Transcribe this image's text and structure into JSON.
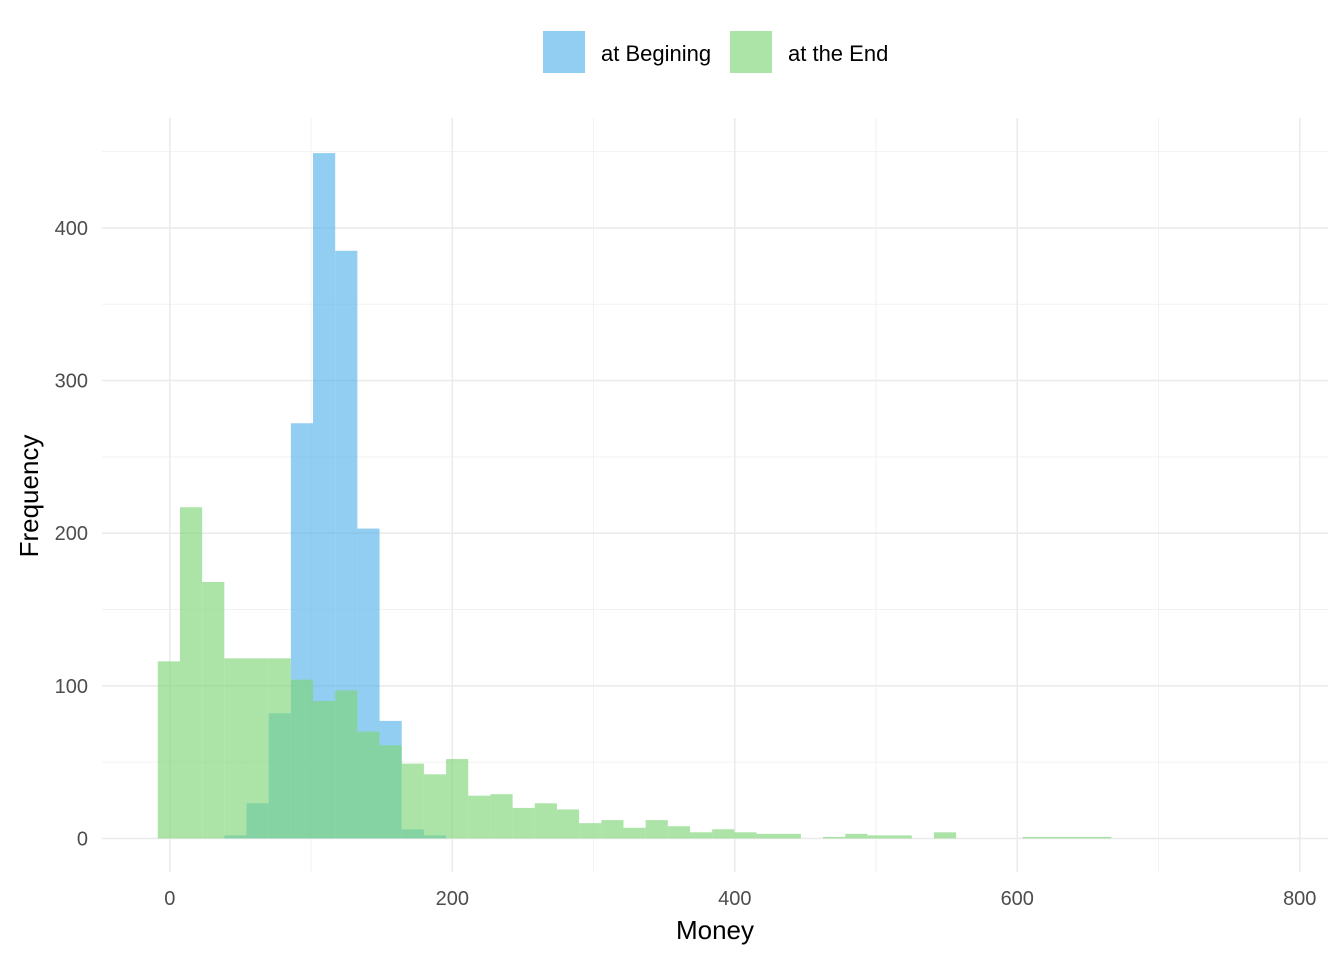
{
  "chart_data": {
    "type": "histogram",
    "xlabel": "Money",
    "ylabel": "Frequency",
    "xlim": [
      -48,
      820
    ],
    "ylim": [
      -22,
      472
    ],
    "x_ticks": [
      0,
      200,
      400,
      600,
      800
    ],
    "y_ticks": [
      0,
      100,
      200,
      300,
      400
    ],
    "x_tick_labels": [
      "0",
      "200",
      "400",
      "600",
      "800"
    ],
    "y_tick_labels": [
      "0",
      "100",
      "200",
      "300",
      "400"
    ],
    "grid": true,
    "legend_position": "top",
    "bin_width": 15.7,
    "bin_start": -8.5,
    "series": [
      {
        "name": "at Begining",
        "color": "#56B4E9",
        "counts": [
          0,
          0,
          0,
          2,
          23,
          82,
          272,
          449,
          385,
          203,
          77,
          6,
          2,
          0,
          0,
          0,
          0,
          0,
          0,
          0,
          0,
          0,
          0,
          0,
          0,
          0,
          0,
          0,
          0,
          0,
          0,
          0,
          0,
          0,
          0,
          0,
          0,
          0,
          0,
          0,
          0,
          0,
          0,
          0,
          0,
          0,
          0,
          0,
          0,
          0,
          0,
          0,
          0,
          0,
          0,
          0,
          0,
          0,
          0,
          0
        ]
      },
      {
        "name": "at the End",
        "color": "#7FD67A",
        "counts": [
          116,
          217,
          168,
          118,
          118,
          118,
          104,
          90,
          97,
          70,
          61,
          49,
          42,
          52,
          28,
          29,
          20,
          23,
          19,
          10,
          12,
          7,
          12,
          8,
          4,
          6,
          4,
          3,
          3,
          0,
          1,
          3,
          2,
          2,
          0,
          4,
          0,
          0,
          0,
          1,
          1,
          1,
          1,
          0,
          0,
          0,
          0,
          0,
          0,
          0,
          0,
          0,
          0,
          0,
          0,
          1,
          0,
          0,
          0,
          0
        ]
      }
    ]
  }
}
